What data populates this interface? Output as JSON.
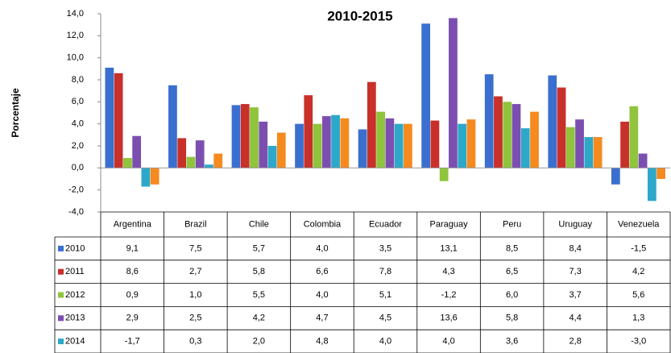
{
  "chart_data": {
    "type": "bar",
    "title": "2010-2015",
    "y_label": "Porcentaje",
    "categories": [
      "Argentina",
      "Brazil",
      "Chile",
      "Colombia",
      "Ecuador",
      "Paraguay",
      "Peru",
      "Uruguay",
      "Venezuela"
    ],
    "series": [
      {
        "name": "2010",
        "color": "#3a6fd0",
        "values": [
          9.1,
          7.5,
          5.7,
          4.0,
          3.5,
          13.1,
          8.5,
          8.4,
          -1.5
        ],
        "value_labels": [
          "9,1",
          "7,5",
          "5,7",
          "4,0",
          "3,5",
          "13,1",
          "8,5",
          "8,4",
          "-1,5"
        ]
      },
      {
        "name": "2011",
        "color": "#c8302a",
        "values": [
          8.6,
          2.7,
          5.8,
          6.6,
          7.8,
          4.3,
          6.5,
          7.3,
          4.2
        ],
        "value_labels": [
          "8,6",
          "2,7",
          "5,8",
          "6,6",
          "7,8",
          "4,3",
          "6,5",
          "7,3",
          "4,2"
        ]
      },
      {
        "name": "2012",
        "color": "#8fc43c",
        "values": [
          0.9,
          1.0,
          5.5,
          4.0,
          5.1,
          -1.2,
          6.0,
          3.7,
          5.6
        ],
        "value_labels": [
          "0,9",
          "1,0",
          "5,5",
          "4,0",
          "5,1",
          "-1,2",
          "6,0",
          "3,7",
          "5,6"
        ]
      },
      {
        "name": "2013",
        "color": "#7b4fb0",
        "values": [
          2.9,
          2.5,
          4.2,
          4.7,
          4.5,
          13.6,
          5.8,
          4.4,
          1.3
        ],
        "value_labels": [
          "2,9",
          "2,5",
          "4,2",
          "4,7",
          "4,5",
          "13,6",
          "5,8",
          "4,4",
          "1,3"
        ]
      },
      {
        "name": "2014",
        "color": "#2ea8c8",
        "values": [
          -1.7,
          0.3,
          2.0,
          4.8,
          4.0,
          4.0,
          3.6,
          2.8,
          -3.0
        ],
        "value_labels": [
          "-1,7",
          "0,3",
          "2,0",
          "4,8",
          "4,0",
          "4,0",
          "3,6",
          "2,8",
          "-3,0"
        ]
      },
      {
        "color": "#f58a1f",
        "values": [
          -1.5,
          1.3,
          3.2,
          4.5,
          4.0,
          4.4,
          5.1,
          2.8,
          -1.0
        ]
      }
    ],
    "ylim": [
      -4,
      14
    ],
    "yticks": [
      {
        "value": -4,
        "label": "-4,0"
      },
      {
        "value": -2,
        "label": "-2,0"
      },
      {
        "value": 0,
        "label": "0,0"
      },
      {
        "value": 2,
        "label": "2,0"
      },
      {
        "value": 4,
        "label": "4,0"
      },
      {
        "value": 6,
        "label": "6,0"
      },
      {
        "value": 8,
        "label": "8,0"
      },
      {
        "value": 10,
        "label": "10,0"
      },
      {
        "value": 12,
        "label": "12,0"
      },
      {
        "value": 14,
        "label": "14,0"
      }
    ],
    "grid": false
  }
}
